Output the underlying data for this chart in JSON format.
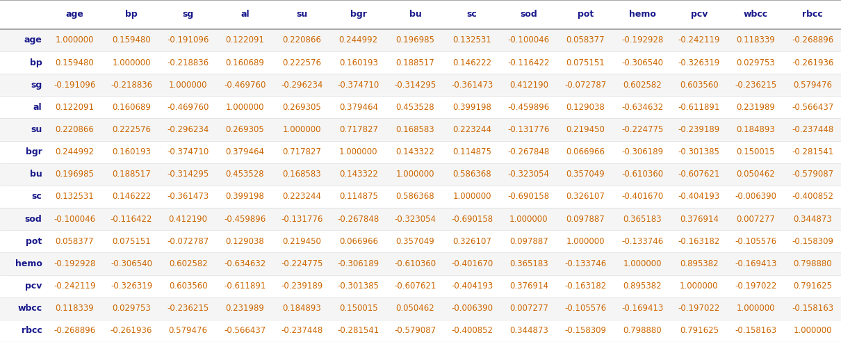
{
  "columns": [
    "age",
    "bp",
    "sg",
    "al",
    "su",
    "bgr",
    "bu",
    "sc",
    "sod",
    "pot",
    "hemo",
    "pcv",
    "wbcc",
    "rbcc"
  ],
  "rows": [
    "age",
    "bp",
    "sg",
    "al",
    "su",
    "bgr",
    "bu",
    "sc",
    "sod",
    "pot",
    "hemo",
    "pcv",
    "wbcc",
    "rbcc"
  ],
  "matrix": [
    [
      1.0,
      0.15948,
      -0.191096,
      0.122091,
      0.220866,
      0.244992,
      0.196985,
      0.132531,
      -0.100046,
      0.058377,
      -0.192928,
      -0.242119,
      0.118339,
      -0.268896
    ],
    [
      0.15948,
      1.0,
      -0.218836,
      0.160689,
      0.222576,
      0.160193,
      0.188517,
      0.146222,
      -0.116422,
      0.075151,
      -0.30654,
      -0.326319,
      0.029753,
      -0.261936
    ],
    [
      -0.191096,
      -0.218836,
      1.0,
      -0.46976,
      -0.296234,
      -0.37471,
      -0.314295,
      -0.361473,
      0.41219,
      -0.072787,
      0.602582,
      0.60356,
      -0.236215,
      0.579476
    ],
    [
      0.122091,
      0.160689,
      -0.46976,
      1.0,
      0.269305,
      0.379464,
      0.453528,
      0.399198,
      -0.459896,
      0.129038,
      -0.634632,
      -0.611891,
      0.231989,
      -0.566437
    ],
    [
      0.220866,
      0.222576,
      -0.296234,
      0.269305,
      1.0,
      0.717827,
      0.168583,
      0.223244,
      -0.131776,
      0.21945,
      -0.224775,
      -0.239189,
      0.184893,
      -0.237448
    ],
    [
      0.244992,
      0.160193,
      -0.37471,
      0.379464,
      0.717827,
      1.0,
      0.143322,
      0.114875,
      -0.267848,
      0.066966,
      -0.306189,
      -0.301385,
      0.150015,
      -0.281541
    ],
    [
      0.196985,
      0.188517,
      -0.314295,
      0.453528,
      0.168583,
      0.143322,
      1.0,
      0.586368,
      -0.323054,
      0.357049,
      -0.61036,
      -0.607621,
      0.050462,
      -0.579087
    ],
    [
      0.132531,
      0.146222,
      -0.361473,
      0.399198,
      0.223244,
      0.114875,
      0.586368,
      1.0,
      -0.690158,
      0.326107,
      -0.40167,
      -0.404193,
      -0.00639,
      -0.400852
    ],
    [
      -0.100046,
      -0.116422,
      0.41219,
      -0.459896,
      -0.131776,
      -0.267848,
      -0.323054,
      -0.690158,
      1.0,
      0.097887,
      0.365183,
      0.376914,
      0.007277,
      0.344873
    ],
    [
      0.058377,
      0.075151,
      -0.072787,
      0.129038,
      0.21945,
      0.066966,
      0.357049,
      0.326107,
      0.097887,
      1.0,
      -0.133746,
      -0.163182,
      -0.105576,
      -0.158309
    ],
    [
      -0.192928,
      -0.30654,
      0.602582,
      -0.634632,
      -0.224775,
      -0.306189,
      -0.61036,
      -0.40167,
      0.365183,
      -0.133746,
      1.0,
      0.895382,
      -0.169413,
      0.79888
    ],
    [
      -0.242119,
      -0.326319,
      0.60356,
      -0.611891,
      -0.239189,
      -0.301385,
      -0.607621,
      -0.404193,
      0.376914,
      -0.163182,
      0.895382,
      1.0,
      -0.197022,
      0.791625
    ],
    [
      0.118339,
      0.029753,
      -0.236215,
      0.231989,
      0.184893,
      0.150015,
      0.050462,
      -0.00639,
      0.007277,
      -0.105576,
      -0.169413,
      -0.197022,
      1.0,
      -0.158163
    ],
    [
      -0.268896,
      -0.261936,
      0.579476,
      -0.566437,
      -0.237448,
      -0.281541,
      -0.579087,
      -0.400852,
      0.344873,
      -0.158309,
      0.79888,
      0.791625,
      -0.158163,
      1.0
    ]
  ],
  "bg_colors": [
    "#f5f5f5",
    "#ffffff"
  ],
  "header_bg": "#ffffff",
  "row_label_color": "#1a1a8c",
  "col_label_color": "#1a1a8c",
  "value_color": "#cc6600",
  "header_line_color": "#aaaaaa",
  "row_line_color": "#dddddd",
  "font_size": 8.5,
  "header_font_size": 9.0,
  "row_label_font_size": 9.0
}
